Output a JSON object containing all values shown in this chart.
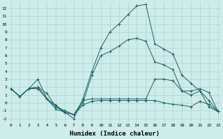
{
  "xlabel": "Humidex (Indice chaleur)",
  "background_color": "#ceecea",
  "grid_color": "#aed8d4",
  "line_color": "#1a6060",
  "marker": "+",
  "x_ticks": [
    0,
    1,
    2,
    3,
    4,
    5,
    6,
    7,
    8,
    9,
    10,
    11,
    12,
    13,
    14,
    15,
    16,
    17,
    18,
    19,
    20,
    21,
    22,
    23
  ],
  "y_ticks": [
    -2,
    -1,
    0,
    1,
    2,
    3,
    4,
    5,
    6,
    7,
    8,
    9,
    10,
    11,
    12
  ],
  "ylim": [
    -2.5,
    12.8
  ],
  "xlim": [
    -0.3,
    23.3
  ],
  "series": [
    [
      1.8,
      0.8,
      1.8,
      3.0,
      0.5,
      -0.5,
      -1.2,
      -1.5,
      0.3,
      0.5,
      0.5,
      0.5,
      0.5,
      0.5,
      0.5,
      0.5,
      3.0,
      3.0,
      2.8,
      1.5,
      1.5,
      1.8,
      1.3,
      -1.1
    ],
    [
      1.8,
      0.8,
      1.8,
      1.8,
      0.5,
      -0.8,
      -1.2,
      -1.5,
      -0.3,
      0.2,
      0.3,
      0.3,
      0.3,
      0.3,
      0.3,
      0.3,
      0.3,
      0.0,
      -0.2,
      -0.3,
      -0.5,
      0.2,
      -0.2,
      -1.1
    ],
    [
      1.8,
      0.8,
      1.8,
      2.0,
      1.2,
      -0.5,
      -1.0,
      -1.5,
      0.0,
      3.5,
      6.0,
      6.5,
      7.2,
      8.0,
      8.2,
      7.8,
      5.2,
      4.8,
      4.2,
      1.5,
      1.0,
      1.5,
      0.3,
      -1.1
    ],
    [
      1.8,
      0.8,
      1.8,
      2.0,
      0.5,
      -0.3,
      -1.2,
      -2.0,
      0.5,
      4.0,
      7.0,
      9.0,
      10.0,
      11.2,
      12.3,
      12.5,
      7.5,
      6.8,
      6.2,
      3.5,
      2.5,
      1.5,
      -0.5,
      -1.1
    ]
  ]
}
